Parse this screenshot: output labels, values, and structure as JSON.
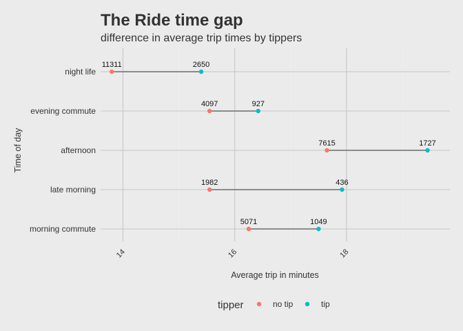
{
  "chart_data": {
    "type": "dumbbell",
    "title": "The Ride time gap",
    "subtitle": "difference in average trip times by tippers",
    "xlabel": "Average trip in minutes",
    "ylabel": "Time of day",
    "xlim": [
      13.6,
      19.85
    ],
    "x_ticks": [
      14,
      16,
      18
    ],
    "categories": [
      "night life",
      "evening commute",
      "afternoon",
      "late morning",
      "morning commute"
    ],
    "series": [
      {
        "name": "no tip",
        "color": "#f8766d",
        "values": [
          13.8,
          15.55,
          17.65,
          15.55,
          16.25
        ],
        "labels": [
          "11311",
          "4097",
          "7615",
          "1982",
          "5071"
        ]
      },
      {
        "name": "tip",
        "color": "#00bfc4",
        "values": [
          15.4,
          16.42,
          19.45,
          17.92,
          17.5
        ],
        "labels": [
          "2650",
          "927",
          "1727",
          "436",
          "1049"
        ]
      }
    ],
    "legend": {
      "title": "tipper",
      "position": "bottom"
    },
    "grid": true
  }
}
